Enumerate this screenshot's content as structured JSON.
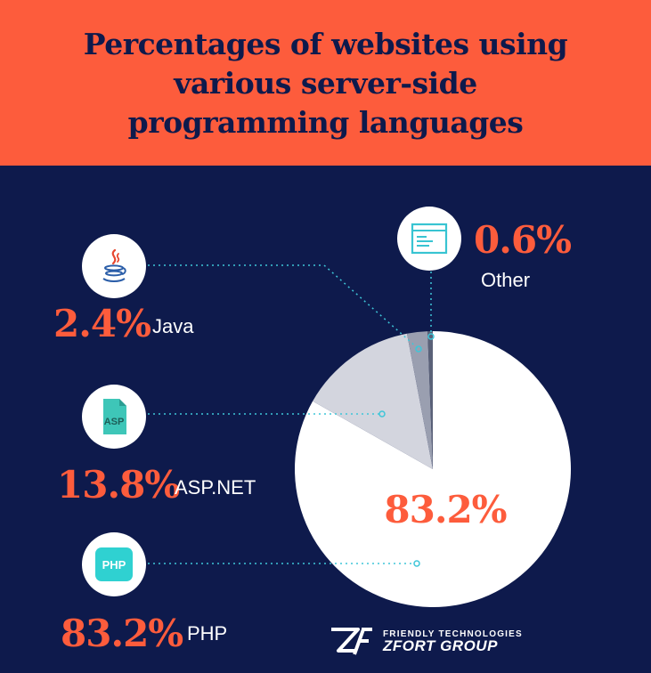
{
  "title_lines": [
    "Percentages of websites using",
    "various server-side",
    "programming languages"
  ],
  "colors": {
    "header": "#fd5c3c",
    "background": "#0e1a4c",
    "accent": "#fd5c3c",
    "leader": "#3ec6d8",
    "php_slice": "#ffffff",
    "asp_slice": "#d3d5de",
    "java_slice": "#9a9fb0",
    "other_slice": "#5a6178"
  },
  "chart_data": {
    "type": "pie",
    "title": "Percentages of websites using various server-side programming languages",
    "unit": "%",
    "slices": [
      {
        "label": "PHP",
        "value": 83.2,
        "display": "83.2%",
        "icon": "php-file-icon"
      },
      {
        "label": "ASP.NET",
        "value": 13.8,
        "display": "13.8%",
        "icon": "asp-file-icon"
      },
      {
        "label": "Java",
        "value": 2.4,
        "display": "2.4%",
        "icon": "java-coffee-icon"
      },
      {
        "label": "Other",
        "value": 0.6,
        "display": "0.6%",
        "icon": "code-window-icon"
      }
    ],
    "inside_label": "83.2%"
  },
  "legend": {
    "java": {
      "pct": "2.4%",
      "label": "Java"
    },
    "asp": {
      "pct": "13.8%",
      "label": "ASP.NET",
      "icon_text": "ASP"
    },
    "php": {
      "pct": "83.2%",
      "label": "PHP",
      "icon_text": "PHP"
    },
    "other": {
      "pct": "0.6%",
      "label": "Other"
    }
  },
  "logo": {
    "tagline": "FRIENDLY TECHNOLOGIES",
    "name": "ZFORT GROUP"
  }
}
